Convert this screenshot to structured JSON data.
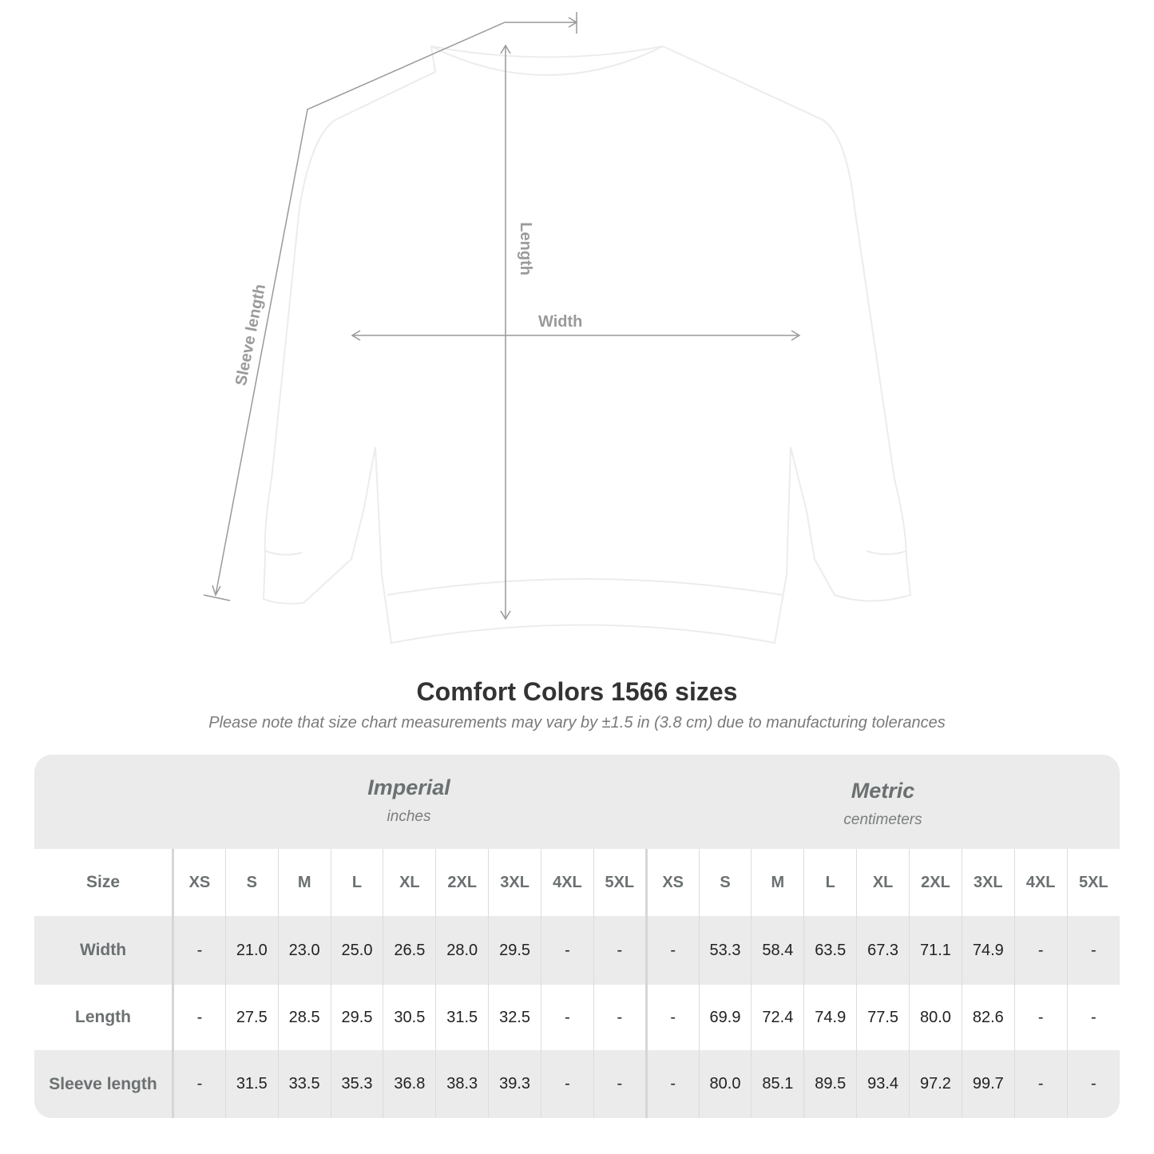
{
  "diagram": {
    "length_label": "Length",
    "width_label": "Width",
    "sleeve_label": "Sleeve length"
  },
  "title": "Comfort Colors 1566 sizes",
  "note": "Please note that size chart measurements may vary by ±1.5 in (3.8 cm) due to manufacturing tolerances",
  "table": {
    "imperial": {
      "name": "Imperial",
      "unit": "inches"
    },
    "metric": {
      "name": "Metric",
      "unit": "centimeters"
    },
    "size_label": "Size",
    "sizes": [
      "XS",
      "S",
      "M",
      "L",
      "XL",
      "2XL",
      "3XL",
      "4XL",
      "5XL"
    ],
    "rows": [
      {
        "label": "Width",
        "imperial": [
          "-",
          "21.0",
          "23.0",
          "25.0",
          "26.5",
          "28.0",
          "29.5",
          "-",
          "-"
        ],
        "metric": [
          "-",
          "53.3",
          "58.4",
          "63.5",
          "67.3",
          "71.1",
          "74.9",
          "-",
          "-"
        ]
      },
      {
        "label": "Length",
        "imperial": [
          "-",
          "27.5",
          "28.5",
          "29.5",
          "30.5",
          "31.5",
          "32.5",
          "-",
          "-"
        ],
        "metric": [
          "-",
          "69.9",
          "72.4",
          "74.9",
          "77.5",
          "80.0",
          "82.6",
          "-",
          "-"
        ]
      },
      {
        "label": "Sleeve length",
        "imperial": [
          "-",
          "31.5",
          "33.5",
          "35.3",
          "36.8",
          "38.3",
          "39.3",
          "-",
          "-"
        ],
        "metric": [
          "-",
          "80.0",
          "85.1",
          "89.5",
          "93.4",
          "97.2",
          "99.7",
          "-",
          "-"
        ]
      }
    ]
  }
}
